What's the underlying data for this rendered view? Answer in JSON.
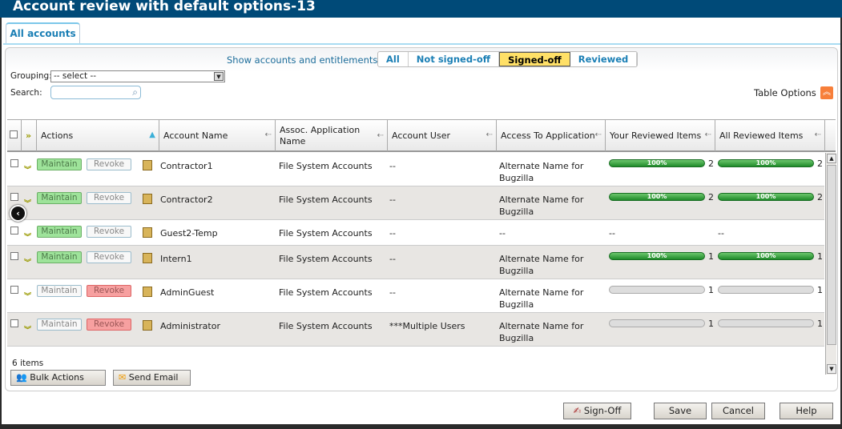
{
  "window": {
    "title": "Account review with default options-13"
  },
  "tabs": [
    {
      "label": "All accounts"
    }
  ],
  "filter": {
    "label": "Show accounts and entitlements:",
    "options": [
      "All",
      "Not signed-off",
      "Signed-off",
      "Reviewed"
    ],
    "selected": "Signed-off"
  },
  "grouping": {
    "label": "Grouping:",
    "value": "-- select --"
  },
  "search": {
    "label": "Search:",
    "value": "",
    "placeholder": ""
  },
  "table_options": "Table Options",
  "columns": [
    "Actions",
    "Account Name",
    "Assoc. Application Name",
    "Account User",
    "Access To Application",
    "Your Reviewed Items",
    "All Reviewed Items"
  ],
  "rows": [
    {
      "maintain": "Maintain",
      "revoke": "Revoke",
      "state": "maintain",
      "name": "Contractor1",
      "app": "File System Accounts",
      "user": "--",
      "access": "Alternate Name for Bugzilla",
      "your_pct": 100,
      "your_label": "100%",
      "your_count": "2",
      "all_pct": 100,
      "all_label": "100%",
      "all_count": "2"
    },
    {
      "maintain": "Maintain",
      "revoke": "Revoke",
      "state": "maintain",
      "name": "Contractor2",
      "app": "File System Accounts",
      "user": "--",
      "access": "Alternate Name for Bugzilla",
      "your_pct": 100,
      "your_label": "100%",
      "your_count": "2",
      "all_pct": 100,
      "all_label": "100%",
      "all_count": "2"
    },
    {
      "maintain": "Maintain",
      "revoke": "Revoke",
      "state": "maintain",
      "name": "Guest2-Temp",
      "app": "File System Accounts",
      "user": "--",
      "access": "--",
      "your_text": "--",
      "all_text": "--"
    },
    {
      "maintain": "Maintain",
      "revoke": "Revoke",
      "state": "maintain",
      "name": "Intern1",
      "app": "File System Accounts",
      "user": "--",
      "access": "Alternate Name for Bugzilla",
      "your_pct": 100,
      "your_label": "100%",
      "your_count": "1",
      "all_pct": 100,
      "all_label": "100%",
      "all_count": "1"
    },
    {
      "maintain": "Maintain",
      "revoke": "Revoke",
      "state": "revoke",
      "name": "AdminGuest",
      "app": "File System Accounts",
      "user": "--",
      "access": "Alternate Name for Bugzilla",
      "your_pct": 0,
      "your_label": "",
      "your_count": "1",
      "all_pct": 0,
      "all_label": "",
      "all_count": "1"
    },
    {
      "maintain": "Maintain",
      "revoke": "Revoke",
      "state": "revoke",
      "name": "Administrator",
      "app": "File System Accounts",
      "user": "***Multiple Users",
      "access": "Alternate Name for Bugzilla",
      "your_pct": 0,
      "your_label": "",
      "your_count": "1",
      "all_pct": 0,
      "all_label": "",
      "all_count": "1"
    }
  ],
  "footer": {
    "count": "6 items",
    "bulk": "Bulk Actions",
    "email": "Send Email"
  },
  "buttons": {
    "signoff": "Sign-Off",
    "save": "Save",
    "cancel": "Cancel",
    "help": "Help"
  }
}
